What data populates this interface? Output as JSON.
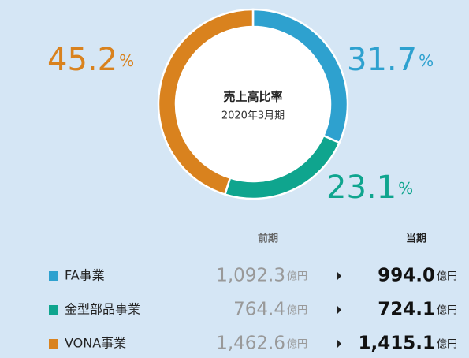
{
  "chart_data": {
    "type": "donut",
    "center_title": "売上高比率",
    "center_subtitle": "2020年3月期",
    "categories": [
      "FA事業",
      "金型部品事業",
      "VONA事業"
    ],
    "values": [
      31.7,
      23.1,
      45.2
    ],
    "unit": "%",
    "colors": [
      "#2ea1cf",
      "#0fa58e",
      "#d9821e"
    ]
  },
  "table": {
    "headers": [
      "前期",
      "当期"
    ],
    "unit": "億円",
    "rows": [
      [
        "1,092.3",
        "994.0"
      ],
      [
        "764.4",
        "724.1"
      ],
      [
        "1,462.6",
        "1,415.1"
      ]
    ]
  }
}
